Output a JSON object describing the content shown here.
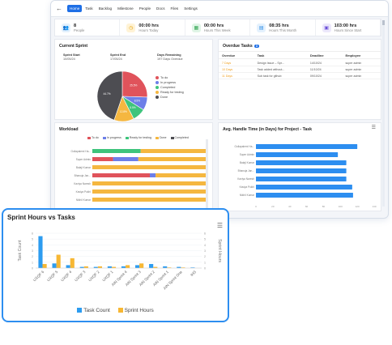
{
  "nav": {
    "back": "←",
    "tabs": [
      "Home",
      "Task",
      "Backlog",
      "Milestone",
      "People",
      "Docs",
      "Files",
      "Settings"
    ],
    "active": 0
  },
  "stats": [
    {
      "value": "8",
      "label": "People",
      "icon": "people-icon",
      "bg": "#e4f1fd",
      "fg": "#2a8be6",
      "glyph": "👥"
    },
    {
      "value": "00:00 hrs",
      "label": "Hours Today",
      "icon": "clock-icon",
      "bg": "#fff3d6",
      "fg": "#e6a100",
      "glyph": "◷"
    },
    {
      "value": "00:00 hrs",
      "label": "Hours This Week",
      "icon": "calendar-week-icon",
      "bg": "#e0f5e6",
      "fg": "#2ea44f",
      "glyph": "▦"
    },
    {
      "value": "08:35 hrs",
      "label": "Hours This Month",
      "icon": "calendar-month-icon",
      "bg": "#e4f1fd",
      "fg": "#2a8be6",
      "glyph": "▤"
    },
    {
      "value": "103:00 hrs",
      "label": "Hours Since Start",
      "icon": "briefcase-icon",
      "bg": "#ece8fb",
      "fg": "#6b4fd8",
      "glyph": "▣"
    }
  ],
  "sprint": {
    "title": "Current Sprint",
    "start_label": "Sprint Start",
    "start_value": "10/05/24",
    "end_label": "Sprint End",
    "end_value": "17/05/24",
    "days_label": "Days Remaining",
    "days_value": "197 Days Overdue",
    "slices": [
      {
        "label": "To do",
        "value": 25.5,
        "color": "#e0535b"
      },
      {
        "label": "In progress",
        "value": 8.5,
        "color": "#6d7fe8"
      },
      {
        "label": "Completed",
        "value": 8.5,
        "color": "#3ec47c"
      },
      {
        "label": "Ready for testing",
        "value": 12.8,
        "color": "#f5b740"
      },
      {
        "label": "Done",
        "value": 44.7,
        "color": "#4d4d52"
      }
    ]
  },
  "overdue": {
    "title": "Overdue Tasks",
    "count": "3",
    "headers": [
      "Overdue",
      "Task",
      "Deadline",
      "Employee"
    ],
    "rows": [
      [
        "7 Days",
        "Design Issue – Spr...",
        "14/10/24",
        "super admin"
      ],
      [
        "10 Days",
        "Task added without...",
        "11/10/24",
        "super admin"
      ],
      [
        "11 Days",
        "Sub task for github",
        "09/10/24",
        "super admin"
      ]
    ]
  },
  "workload": {
    "title": "Workload",
    "legend": [
      {
        "label": "To do",
        "color": "#e0535b"
      },
      {
        "label": "In progress",
        "color": "#6d7fe8"
      },
      {
        "label": "Ready for testing",
        "color": "#3ec47c"
      },
      {
        "label": "Done",
        "color": "#f5b740"
      },
      {
        "label": "Completed",
        "color": "#4d4d52"
      }
    ],
    "rows": [
      {
        "name": "Gollapalemi Ha...",
        "segs": [
          0,
          0,
          0.42,
          0.58,
          0
        ]
      },
      {
        "name": "Super Admin",
        "segs": [
          0.18,
          0.22,
          0,
          0.6,
          0
        ]
      },
      {
        "name": "Balaji Kumar",
        "segs": [
          0,
          0,
          0,
          1,
          0
        ]
      },
      {
        "name": "Bhanuja Jan...",
        "segs": [
          0.5,
          0.05,
          0,
          0.45,
          0
        ]
      },
      {
        "name": "Kaviya Naresh",
        "segs": [
          0,
          0,
          0,
          1,
          0
        ]
      },
      {
        "name": "Kaviya Pokhl",
        "segs": [
          0,
          0,
          0,
          1,
          0
        ]
      },
      {
        "name": "Nikhil Kumar",
        "segs": [
          0,
          0,
          0,
          1,
          0
        ]
      }
    ]
  },
  "aht": {
    "title": "Avg. Handle Time (in Days) for Project - Task",
    "names": [
      "Gollapalemi Ha...",
      "Super Admin",
      "Balaji Kumar",
      "Bhanuja Jan...",
      "Kaviya Naresh",
      "Kaviya Pokhl",
      "Nikhil Kumar"
    ],
    "values": [
      120,
      97,
      107,
      107,
      107,
      114,
      115
    ],
    "max": 140,
    "ticks": [
      "0",
      "20",
      "40",
      "60",
      "80",
      "100",
      "120",
      "140"
    ]
  },
  "chart_data": {
    "type": "bar",
    "title": "Sprint Hours vs Tasks",
    "ylabel": "Task Count",
    "y2label": "Sprint Hours",
    "categories": [
      "UXQF 6",
      "UXQF 5",
      "UXQF 4",
      "UXQF 3",
      "UXQF 2",
      "UXQF 1",
      "AIN Sprint 4",
      "AIN Sprint 3",
      "AIN Sprint 2",
      "AIN Sprint 1",
      "AIN Sprint One",
      "IHS"
    ],
    "series": [
      {
        "name": "Task Count",
        "color": "#2d9cf0",
        "values": [
          5.5,
          0.8,
          0.5,
          0.2,
          0.2,
          0.3,
          0.3,
          0.5,
          0.7,
          0.3,
          0.2,
          0.1
        ]
      },
      {
        "name": "Sprint Hours",
        "color": "#f7b733",
        "values": [
          0.7,
          2.3,
          1.7,
          0.3,
          0.3,
          0.2,
          0.5,
          0.8,
          0.2,
          0.1,
          0.1,
          0.0
        ]
      }
    ],
    "ylim": [
      0,
      6
    ],
    "yticks": [
      "6",
      "5",
      "4",
      "3",
      "2",
      "1",
      "0"
    ]
  }
}
